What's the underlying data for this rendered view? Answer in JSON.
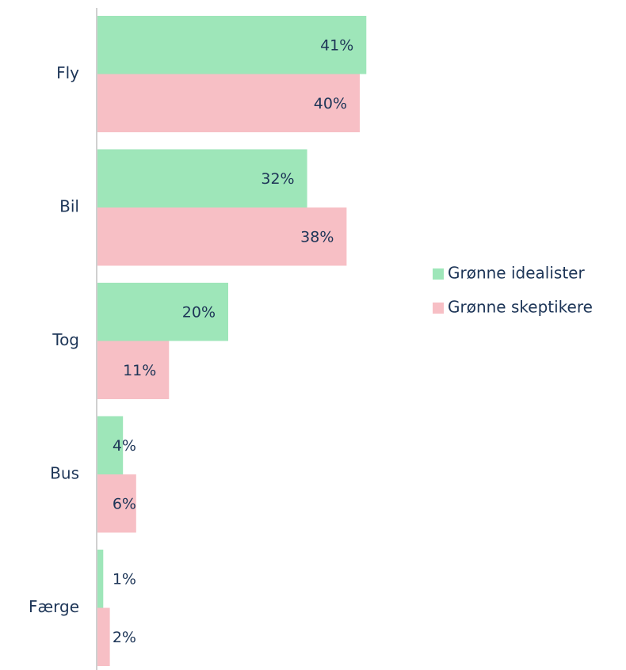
{
  "chart_data": {
    "type": "bar",
    "orientation": "horizontal",
    "categories": [
      "Fly",
      "Bil",
      "Tog",
      "Bus",
      "Færge"
    ],
    "series": [
      {
        "name": "Grønne idealister",
        "color": "#9ee6b9",
        "values": [
          41,
          32,
          20,
          4,
          1
        ],
        "value_labels": [
          "41%",
          "32%",
          "20%",
          "4%",
          "1%"
        ]
      },
      {
        "name": "Grønne skeptikere",
        "color": "#f7bfc5",
        "values": [
          40,
          38,
          11,
          6,
          2
        ],
        "value_labels": [
          "40%",
          "38%",
          "11%",
          "6%",
          "2%"
        ]
      }
    ],
    "legend": "right"
  }
}
